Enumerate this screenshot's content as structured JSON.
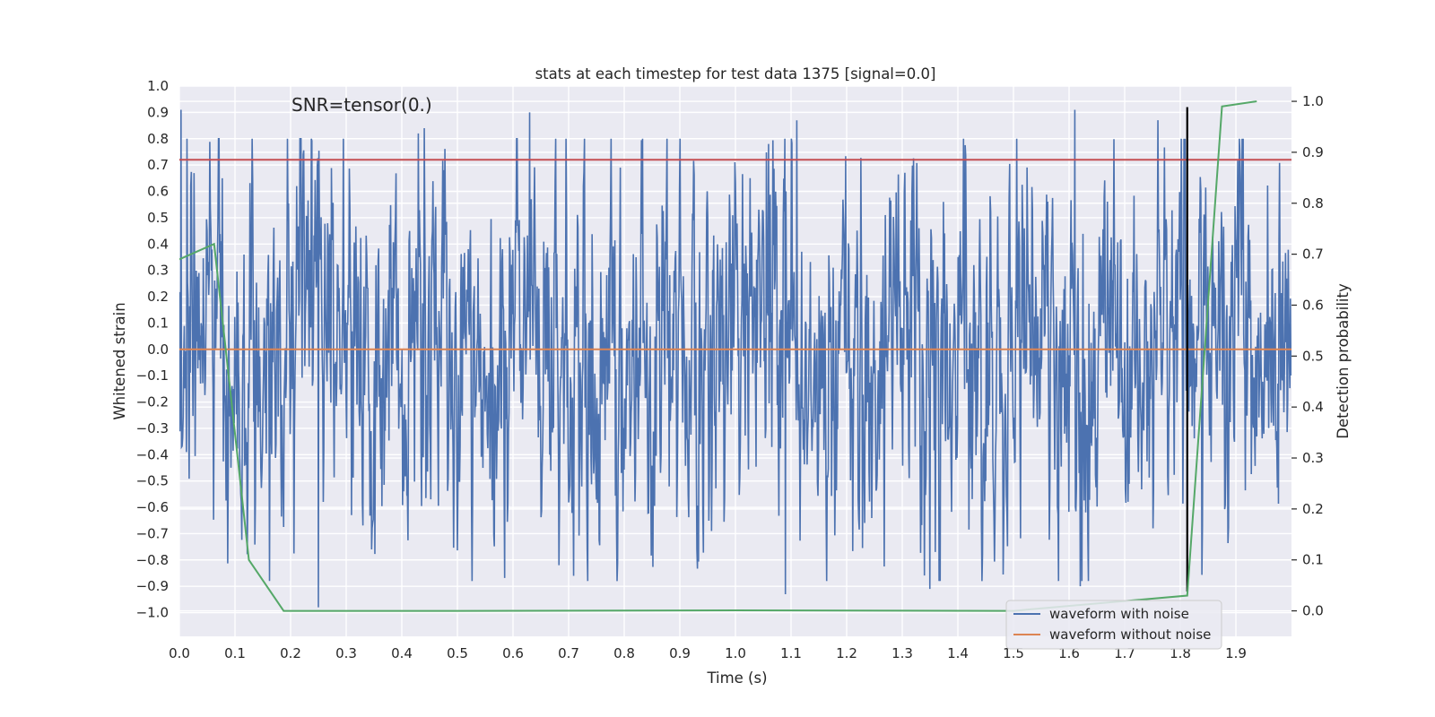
{
  "chart_data": {
    "type": "line",
    "title": "stats at each timestep for test data 1375 [signal=0.0]",
    "annotation": "SNR=tensor(0.)",
    "xlabel": "Time (s)",
    "ylabel_left": "Whitened strain",
    "ylabel_right": "Detection probability",
    "xlim": [
      0.0,
      2.0
    ],
    "ylim_left": [
      -1.09,
      1.0
    ],
    "ylim_right": [
      -0.05,
      1.03
    ],
    "x_ticks": [
      "0.0",
      "0.1",
      "0.2",
      "0.3",
      "0.4",
      "0.5",
      "0.6",
      "0.7",
      "0.8",
      "0.9",
      "1.0",
      "1.1",
      "1.2",
      "1.3",
      "1.4",
      "1.5",
      "1.6",
      "1.7",
      "1.8",
      "1.9"
    ],
    "y_left_ticks": [
      "1.0",
      "0.9",
      "0.8",
      "0.7",
      "0.6",
      "0.5",
      "0.4",
      "0.3",
      "0.2",
      "0.1",
      "0.0",
      "−0.1",
      "−0.2",
      "−0.3",
      "−0.4",
      "−0.5",
      "−0.6",
      "−0.7",
      "−0.8",
      "−0.9",
      "−1.0"
    ],
    "y_right_ticks": [
      "1.0",
      "0.9",
      "0.8",
      "0.7",
      "0.6",
      "0.5",
      "0.4",
      "0.3",
      "0.2",
      "0.1",
      "0.0"
    ],
    "series": [
      {
        "name": "waveform with noise",
        "color": "#4c72b0",
        "axis": "left",
        "generator": "noise",
        "samples": 2048,
        "duration": 2.0,
        "notable_peaks": [
          [
            0.003,
            0.91
          ],
          [
            0.43,
            0.82
          ],
          [
            0.44,
            0.84
          ],
          [
            0.63,
            0.9
          ],
          [
            1.06,
            0.78
          ],
          [
            1.11,
            0.87
          ],
          [
            1.61,
            0.91
          ],
          [
            1.76,
            0.87
          ],
          [
            0.25,
            -0.98
          ],
          [
            1.09,
            -0.93
          ],
          [
            1.62,
            -0.9
          ],
          [
            1.35,
            -0.91
          ]
        ]
      },
      {
        "name": "waveform without noise",
        "color": "#dd8452",
        "axis": "left",
        "x": [
          0.0,
          2.0
        ],
        "values": [
          0.0,
          0.0
        ]
      },
      {
        "name": "detection probability",
        "color": "#55a868",
        "axis": "right",
        "x": [
          0.0,
          0.0625,
          0.125,
          0.1875,
          0.25,
          0.5,
          1.0,
          1.5,
          1.8125,
          1.875,
          1.9375
        ],
        "values": [
          0.69,
          0.72,
          0.1,
          0.0,
          0.0,
          0.0,
          0.001,
          0.0,
          0.03,
          0.99,
          1.0
        ]
      }
    ],
    "threshold": {
      "color": "#c44e52",
      "value_left": 0.72
    },
    "marker_line": {
      "color": "#000000",
      "x": 1.8125,
      "y_range_left": [
        -0.92,
        0.92
      ]
    },
    "legend": {
      "placement": "lower-right",
      "entries": [
        "waveform with noise",
        "waveform without noise"
      ]
    }
  }
}
